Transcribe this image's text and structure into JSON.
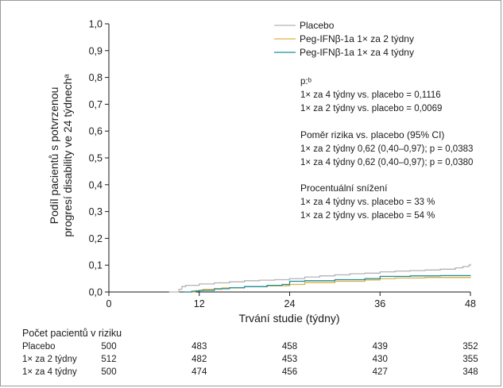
{
  "chart_data": {
    "type": "line",
    "xlabel": "Trvání studie (týdny)",
    "ylabel_lines": [
      "Podíl pacientů s potvrzenou",
      "progresí disability ve 24 týdnechᵃ"
    ],
    "xlim": [
      0,
      48
    ],
    "ylim": [
      0,
      1.0
    ],
    "x_ticks": [
      0,
      12,
      24,
      36,
      48
    ],
    "x_tick_labels": [
      "0",
      "12",
      "24",
      "36",
      "48"
    ],
    "y_ticks": [
      0,
      0.1,
      0.2,
      0.3,
      0.4,
      0.5,
      0.6,
      0.7,
      0.8,
      0.9,
      1.0
    ],
    "y_tick_labels": [
      "0,0",
      "0,1",
      "0,2",
      "0,3",
      "0,4",
      "0,5",
      "0,6",
      "0,7",
      "0,8",
      "0,9",
      "1,0"
    ],
    "legend_position": "top-right",
    "series": [
      {
        "name": "Placebo",
        "color": "#b3b3b3",
        "points": [
          [
            8.0,
            0.0
          ],
          [
            9.3,
            0.01
          ],
          [
            9.7,
            0.02
          ],
          [
            10.2,
            0.025
          ],
          [
            12.0,
            0.03
          ],
          [
            14.0,
            0.034
          ],
          [
            16.0,
            0.038
          ],
          [
            18.0,
            0.042
          ],
          [
            20.0,
            0.044
          ],
          [
            22.0,
            0.046
          ],
          [
            24.0,
            0.05
          ],
          [
            26.0,
            0.056
          ],
          [
            28.0,
            0.06
          ],
          [
            30.0,
            0.064
          ],
          [
            32.0,
            0.068
          ],
          [
            34.0,
            0.07
          ],
          [
            36.0,
            0.075
          ],
          [
            38.0,
            0.078
          ],
          [
            40.0,
            0.08
          ],
          [
            42.0,
            0.082
          ],
          [
            44.0,
            0.085
          ],
          [
            46.0,
            0.09
          ],
          [
            47.0,
            0.095
          ],
          [
            47.8,
            0.1
          ],
          [
            48.0,
            0.105
          ]
        ]
      },
      {
        "name": "Peg-IFNβ-1a 1× za 2 týdny",
        "color": "#e0b040",
        "points": [
          [
            10.0,
            0.0
          ],
          [
            11.5,
            0.005
          ],
          [
            12.5,
            0.01
          ],
          [
            15.0,
            0.015
          ],
          [
            18.0,
            0.02
          ],
          [
            21.0,
            0.023
          ],
          [
            24.0,
            0.028
          ],
          [
            26.0,
            0.035
          ],
          [
            30.0,
            0.04
          ],
          [
            34.0,
            0.045
          ],
          [
            36.0,
            0.05
          ],
          [
            38.0,
            0.052
          ],
          [
            42.0,
            0.054
          ],
          [
            48.0,
            0.055
          ]
        ]
      },
      {
        "name": "Peg-IFNβ-1a 1× za 4 týdny",
        "color": "#1e8e9e",
        "points": [
          [
            10.0,
            0.0
          ],
          [
            11.0,
            0.003
          ],
          [
            12.0,
            0.006
          ],
          [
            14.0,
            0.012
          ],
          [
            16.0,
            0.016
          ],
          [
            18.0,
            0.02
          ],
          [
            21.0,
            0.025
          ],
          [
            23.0,
            0.028
          ],
          [
            24.0,
            0.04
          ],
          [
            26.0,
            0.042
          ],
          [
            30.0,
            0.046
          ],
          [
            34.0,
            0.05
          ],
          [
            36.0,
            0.058
          ],
          [
            40.0,
            0.06
          ],
          [
            44.0,
            0.061
          ],
          [
            48.0,
            0.062
          ]
        ]
      }
    ],
    "annotations": {
      "p_label": "p:ᵇ",
      "p_lines": [
        "1× za 4 týdny vs. placebo = 0,1116",
        "1× za 2 týdny vs. placebo = 0,0069"
      ],
      "hr_heading": "Poměr rizika vs. placebo (95% CI)",
      "hr_lines": [
        "1× za 2 týdny 0,62 (0,40–0,97); p = 0,0383",
        "1× za 4 týdny 0,62 (0,40–0,97); p = 0,0380"
      ],
      "reduction_heading": "Procentuální snížení",
      "reduction_lines": [
        "1× za 4 týdny vs. placebo = 33 %",
        "1× za 2 týdny vs. placebo = 54 %"
      ]
    },
    "risk_table": {
      "title": "Počet pacientů v riziku",
      "rows": [
        {
          "label": "Placebo",
          "values": [
            "500",
            "483",
            "458",
            "439",
            "352"
          ]
        },
        {
          "label": "1× za 2 týdny",
          "values": [
            "512",
            "482",
            "453",
            "430",
            "355"
          ]
        },
        {
          "label": "1× za 4 týdny",
          "values": [
            "500",
            "474",
            "456",
            "427",
            "348"
          ]
        }
      ]
    }
  }
}
